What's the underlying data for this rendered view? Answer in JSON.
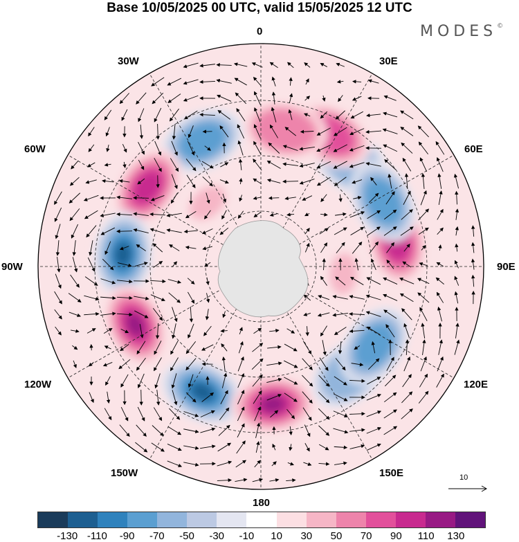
{
  "title": "Base 10/05/2025 00 UTC, valid 15/05/2025 12 UTC",
  "brand": "MODES",
  "brand_mark": "©",
  "lon_labels": {
    "n0": "0",
    "e30": "30E",
    "e60": "60E",
    "e90": "90E",
    "e120": "120E",
    "e150": "150E",
    "s180": "180",
    "w150": "150W",
    "w120": "120W",
    "w90": "90W",
    "w60": "60W",
    "w30": "30W"
  },
  "reference_vector": {
    "value": "10"
  },
  "colorbar": {
    "colors": [
      "#1a3b5a",
      "#1d5f91",
      "#2f82bd",
      "#5b9fd1",
      "#92b5dc",
      "#bcc9e3",
      "#e4e6f1",
      "#ffffff",
      "#fcdfe3",
      "#f6b6c6",
      "#ee84ab",
      "#e2509b",
      "#c82a8f",
      "#981a84",
      "#61137a"
    ],
    "ticks": [
      "-130",
      "-110",
      "-90",
      "-70",
      "-50",
      "-30",
      "-10",
      "10",
      "30",
      "50",
      "70",
      "90",
      "110",
      "130"
    ]
  },
  "map": {
    "projection": "south polar stereographic",
    "anomalies": [
      {
        "lon": 40,
        "value": -60
      },
      {
        "lon": 28,
        "value": 80
      },
      {
        "lon": 10,
        "value": 60
      },
      {
        "lon": -25,
        "value": -80
      },
      {
        "lon": -55,
        "value": 90
      },
      {
        "lon": -40,
        "value": 40
      },
      {
        "lon": -85,
        "value": -110
      },
      {
        "lon": -115,
        "value": 120
      },
      {
        "lon": -155,
        "value": -120
      },
      {
        "lon": 175,
        "value": 110
      },
      {
        "lon": 140,
        "value": -50
      },
      {
        "lon": 125,
        "value": -80
      },
      {
        "lon": 80,
        "value": 90
      },
      {
        "lon": 62,
        "value": -70
      },
      {
        "lon": 95,
        "value": 40
      }
    ]
  }
}
